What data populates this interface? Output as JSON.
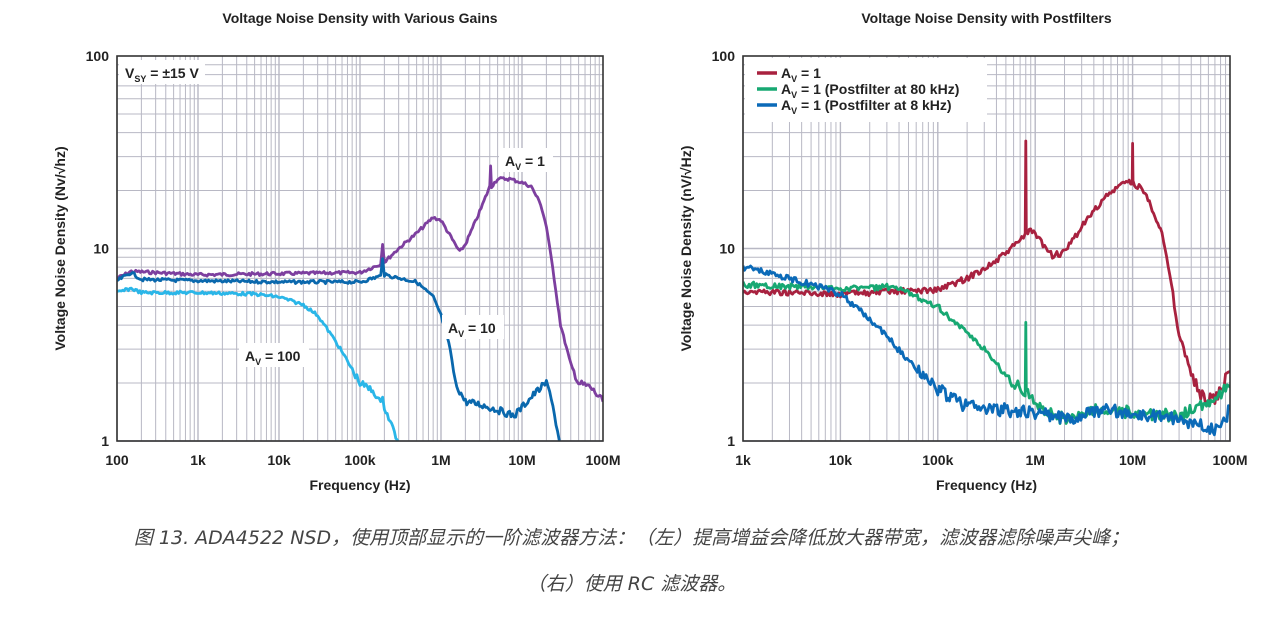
{
  "chart_data": [
    {
      "type": "line",
      "title": "Voltage Noise Density with Various Gains",
      "xlabel": "Frequency (Hz)",
      "ylabel": "Voltage Noise Density (Nv/√hz)",
      "xscale": "log",
      "yscale": "log",
      "xlim": [
        100,
        100000000
      ],
      "ylim": [
        1,
        100
      ],
      "xticks": [
        {
          "v": 100,
          "label": "100"
        },
        {
          "v": 1000,
          "label": "1k"
        },
        {
          "v": 10000,
          "label": "10k"
        },
        {
          "v": 100000,
          "label": "100k"
        },
        {
          "v": 1000000,
          "label": "1M"
        },
        {
          "v": 10000000,
          "label": "10M"
        },
        {
          "v": 100000000,
          "label": "100M"
        }
      ],
      "yticks": [
        {
          "v": 1,
          "label": "1"
        },
        {
          "v": 10,
          "label": "10"
        },
        {
          "v": 100,
          "label": "100"
        }
      ],
      "grid": true,
      "annotations": [
        {
          "main": "V",
          "sub": "SY",
          "rest": " = ±15 V"
        },
        {
          "main": "A",
          "sub": "V",
          "rest": " = 1"
        },
        {
          "main": "A",
          "sub": "V",
          "rest": " = 10"
        },
        {
          "main": "A",
          "sub": "V",
          "rest": " = 100"
        }
      ],
      "series": [
        {
          "color": "#7d3f9f",
          "points": [
            [
              100,
              7.0
            ],
            [
              150,
              7.6
            ],
            [
              300,
              7.5
            ],
            [
              1000,
              7.3
            ],
            [
              10000,
              7.4
            ],
            [
              100000,
              7.5
            ],
            [
              180000,
              8.3
            ],
            [
              190000,
              10.7
            ],
            [
              200000,
              8.5
            ],
            [
              300000,
              10
            ],
            [
              500000,
              12
            ],
            [
              800000,
              14.5
            ],
            [
              1000000,
              14
            ],
            [
              1500000,
              10.5
            ],
            [
              1700000,
              9.6
            ],
            [
              2000000,
              10.5
            ],
            [
              3000000,
              15.5
            ],
            [
              4000000,
              21
            ],
            [
              4100000,
              27
            ],
            [
              4200000,
              21
            ],
            [
              5000000,
              23
            ],
            [
              7000000,
              23
            ],
            [
              10000000,
              22
            ],
            [
              13000000,
              21
            ],
            [
              17000000,
              17
            ],
            [
              20000000,
              13
            ],
            [
              25000000,
              7
            ],
            [
              30000000,
              4
            ],
            [
              40000000,
              2.5
            ],
            [
              50000000,
              2.0
            ],
            [
              70000000,
              1.9
            ],
            [
              100000000,
              1.6
            ]
          ]
        },
        {
          "color": "#0a68ad",
          "points": [
            [
              100,
              6.8
            ],
            [
              150,
              7.5
            ],
            [
              200,
              6.9
            ],
            [
              1000,
              6.8
            ],
            [
              10000,
              6.7
            ],
            [
              100000,
              6.7
            ],
            [
              180000,
              7.2
            ],
            [
              190000,
              9.0
            ],
            [
              200000,
              7.3
            ],
            [
              500000,
              6.7
            ],
            [
              800000,
              5.6
            ],
            [
              1000000,
              4.5
            ],
            [
              1300000,
              3.0
            ],
            [
              1500000,
              2.0
            ],
            [
              2000000,
              1.6
            ],
            [
              3000000,
              1.55
            ],
            [
              5000000,
              1.45
            ],
            [
              8000000,
              1.35
            ],
            [
              10000000,
              1.5
            ],
            [
              15000000,
              1.8
            ],
            [
              20000000,
              2.0
            ],
            [
              23000000,
              1.7
            ],
            [
              30000000,
              0.9
            ]
          ]
        },
        {
          "color": "#2ab6e8",
          "points": [
            [
              100,
              5.9
            ],
            [
              150,
              6.2
            ],
            [
              200,
              5.9
            ],
            [
              1000,
              5.9
            ],
            [
              5000,
              5.8
            ],
            [
              10000,
              5.6
            ],
            [
              20000,
              5.1
            ],
            [
              30000,
              4.5
            ],
            [
              50000,
              3.3
            ],
            [
              70000,
              2.6
            ],
            [
              100000,
              2.0
            ],
            [
              150000,
              1.8
            ],
            [
              180000,
              1.55
            ],
            [
              190000,
              1.75
            ],
            [
              200000,
              1.5
            ],
            [
              300000,
              0.98
            ]
          ]
        }
      ]
    },
    {
      "type": "line",
      "title": "Voltage Noise Density with Postfilters",
      "xlabel": "Frequency (Hz)",
      "ylabel": "Voltage Noise Density (nV/√Hz)",
      "xscale": "log",
      "yscale": "log",
      "xlim": [
        1000,
        100000000
      ],
      "ylim": [
        1,
        100
      ],
      "xticks": [
        {
          "v": 1000,
          "label": "1k"
        },
        {
          "v": 10000,
          "label": "10k"
        },
        {
          "v": 100000,
          "label": "100k"
        },
        {
          "v": 1000000,
          "label": "1M"
        },
        {
          "v": 10000000,
          "label": "10M"
        },
        {
          "v": 100000000,
          "label": "100M"
        }
      ],
      "yticks": [
        {
          "v": 1,
          "label": "1"
        },
        {
          "v": 10,
          "label": "10"
        },
        {
          "v": 100,
          "label": "100"
        }
      ],
      "grid": true,
      "legend": "top-left",
      "series": [
        {
          "name": {
            "main": "A",
            "sub": "V",
            "rest": " = 1"
          },
          "color": "#a8213f",
          "points": [
            [
              1000,
              6.0
            ],
            [
              10000,
              5.8
            ],
            [
              100000,
              6.1
            ],
            [
              200000,
              7
            ],
            [
              400000,
              8.6
            ],
            [
              700000,
              11
            ],
            [
              790000,
              12
            ],
            [
              800000,
              35
            ],
            [
              810000,
              12
            ],
            [
              900000,
              12.5
            ],
            [
              1000000,
              11.8
            ],
            [
              1500000,
              9.2
            ],
            [
              2000000,
              9.5
            ],
            [
              3000000,
              13
            ],
            [
              5000000,
              18
            ],
            [
              8000000,
              22
            ],
            [
              9900000,
              22
            ],
            [
              10000000,
              35
            ],
            [
              10100000,
              22
            ],
            [
              13000000,
              20
            ],
            [
              17000000,
              15
            ],
            [
              20000000,
              12
            ],
            [
              25000000,
              6.5
            ],
            [
              30000000,
              3.5
            ],
            [
              40000000,
              2.3
            ],
            [
              50000000,
              1.7
            ],
            [
              70000000,
              1.6
            ],
            [
              100000000,
              2.3
            ]
          ]
        },
        {
          "name": {
            "main": "A",
            "sub": "V",
            "rest": " = 1 (Postfilter at 80 kHz)"
          },
          "color": "#17a872",
          "points": [
            [
              1000,
              6.5
            ],
            [
              5000,
              6.3
            ],
            [
              10000,
              6.2
            ],
            [
              30000,
              6.3
            ],
            [
              50000,
              5.9
            ],
            [
              100000,
              5.0
            ],
            [
              200000,
              3.6
            ],
            [
              300000,
              3.0
            ],
            [
              500000,
              2.2
            ],
            [
              790000,
              1.75
            ],
            [
              800000,
              4.0
            ],
            [
              810000,
              1.75
            ],
            [
              1000000,
              1.6
            ],
            [
              1500000,
              1.35
            ],
            [
              2000000,
              1.3
            ],
            [
              3000000,
              1.4
            ],
            [
              5000000,
              1.45
            ],
            [
              10000000,
              1.4
            ],
            [
              30000000,
              1.35
            ],
            [
              50000000,
              1.5
            ],
            [
              100000000,
              1.9
            ]
          ]
        },
        {
          "name": {
            "main": "A",
            "sub": "V",
            "rest": " = 1 (Postfilter at 8 kHz)"
          },
          "color": "#0b6ab8",
          "points": [
            [
              1000,
              8
            ],
            [
              3000,
              7
            ],
            [
              5000,
              6.5
            ],
            [
              10000,
              5.8
            ],
            [
              20000,
              4.3
            ],
            [
              30000,
              3.5
            ],
            [
              50000,
              2.6
            ],
            [
              100000,
              1.85
            ],
            [
              200000,
              1.5
            ],
            [
              500000,
              1.45
            ],
            [
              1000000,
              1.4
            ],
            [
              2000000,
              1.3
            ],
            [
              5000000,
              1.45
            ],
            [
              10000000,
              1.4
            ],
            [
              30000000,
              1.3
            ],
            [
              50000000,
              1.2
            ],
            [
              80000000,
              1.1
            ],
            [
              100000000,
              1.5
            ]
          ]
        }
      ]
    }
  ],
  "caption": {
    "line1": "图 13. ADA4522 NSD，使用顶部显示的一阶滤波器方法：（左）提高增益会降低放大器带宽，滤波器滤除噪声尖峰；",
    "line2": "（右）使用 RC 滤波器。"
  }
}
